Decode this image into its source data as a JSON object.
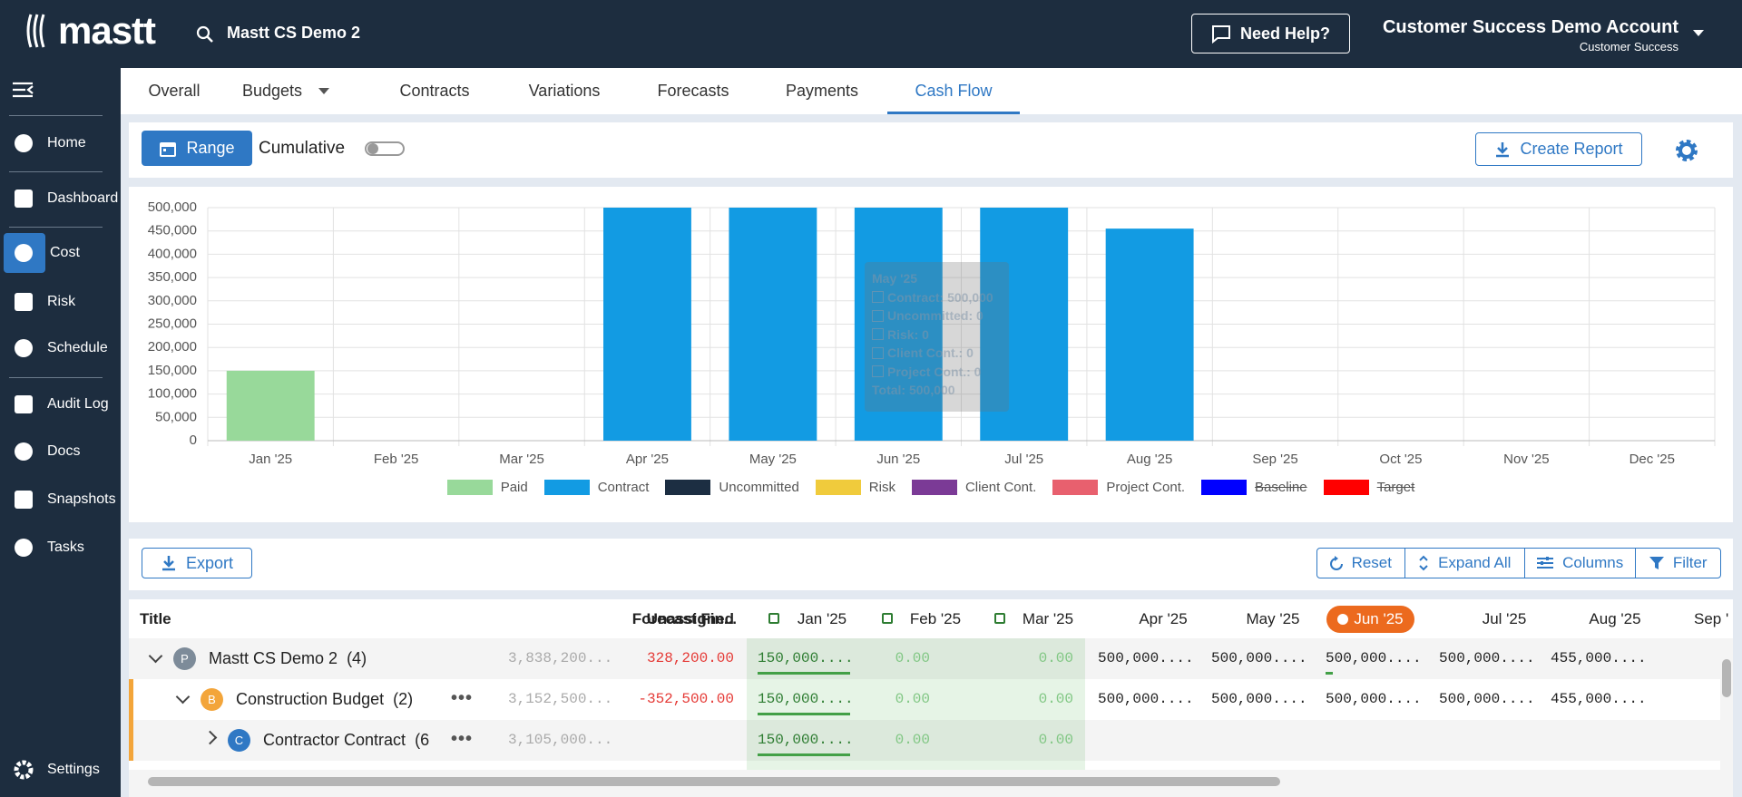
{
  "header": {
    "logo": "mastt",
    "search": "Mastt CS Demo 2",
    "help": "Need Help?",
    "account": "Customer Success Demo Account",
    "role": "Customer Success"
  },
  "sidebar": {
    "items": [
      "Home",
      "Dashboard",
      "Cost",
      "Risk",
      "Schedule",
      "Audit Log",
      "Docs",
      "Snapshots",
      "Tasks"
    ],
    "active": 2,
    "settings": "Settings"
  },
  "tabs": {
    "items": [
      "Overall",
      "Budgets",
      "Contracts",
      "Variations",
      "Forecasts",
      "Payments",
      "Cash Flow"
    ],
    "active": 6
  },
  "toolbar": {
    "range": "Range",
    "cumulative": "Cumulative",
    "create_report": "Create Report"
  },
  "chart_data": {
    "type": "bar",
    "stacked": true,
    "categories": [
      "Jan '25",
      "Feb '25",
      "Mar '25",
      "Apr '25",
      "May '25",
      "Jun '25",
      "Jul '25",
      "Aug '25",
      "Sep '25",
      "Oct '25",
      "Nov '25",
      "Dec '25"
    ],
    "series": [
      {
        "name": "Paid",
        "color": "#98d99a",
        "values": [
          150000,
          0,
          0,
          0,
          0,
          0,
          0,
          0,
          0,
          0,
          0,
          0
        ]
      },
      {
        "name": "Contract",
        "color": "#129be3",
        "values": [
          0,
          0,
          0,
          500000,
          500000,
          500000,
          500000,
          455000,
          0,
          0,
          0,
          0
        ]
      },
      {
        "name": "Uncommitted",
        "color": "#1c2e42",
        "values": [
          0,
          0,
          0,
          0,
          0,
          0,
          0,
          0,
          0,
          0,
          0,
          0
        ]
      },
      {
        "name": "Risk",
        "color": "#f0cb3c",
        "values": [
          0,
          0,
          0,
          0,
          0,
          0,
          0,
          0,
          0,
          0,
          0,
          0
        ]
      },
      {
        "name": "Client Cont.",
        "color": "#7b3a96",
        "values": [
          0,
          0,
          0,
          0,
          0,
          0,
          0,
          0,
          0,
          0,
          0,
          0
        ]
      },
      {
        "name": "Project Cont.",
        "color": "#e8606e",
        "values": [
          0,
          0,
          0,
          0,
          0,
          0,
          0,
          0,
          0,
          0,
          0,
          0
        ]
      },
      {
        "name": "Baseline",
        "color": "#0000ff",
        "hidden": true,
        "values": [
          null,
          null,
          null,
          null,
          null,
          null,
          null,
          null,
          null,
          null,
          null,
          null
        ]
      },
      {
        "name": "Target",
        "color": "#ff0000",
        "hidden": true,
        "values": [
          null,
          null,
          null,
          null,
          null,
          null,
          null,
          null,
          null,
          null,
          null,
          null
        ]
      }
    ],
    "ylim": [
      0,
      500000
    ],
    "yticks": [
      0,
      {
        "value": 50000,
        "label": "50,000"
      },
      {
        "value": 100000,
        "label": "100,000"
      },
      {
        "value": 150000,
        "label": "150,000"
      },
      {
        "value": 200000,
        "label": "200,000"
      },
      {
        "value": 250000,
        "label": "250,000"
      },
      {
        "value": 300000,
        "label": "300,000"
      },
      {
        "value": 350000,
        "label": "350,000"
      },
      {
        "value": 400000,
        "label": "400,000"
      },
      {
        "value": 450000,
        "label": "450,000"
      },
      {
        "value": 500000,
        "label": "500,000"
      }
    ],
    "grid": true,
    "legend": "bottom",
    "tooltip": {
      "title": "May '25",
      "lines": [
        "Contract: 500,000",
        "Uncommitted: 0",
        "Risk: 0",
        "Client Cont.: 0",
        "Project Cont.: 0"
      ],
      "total": "Total: 500,000"
    }
  },
  "table_toolbar": {
    "export": "Export",
    "reset": "Reset",
    "expand_all": "Expand All",
    "columns": "Columns",
    "filter": "Filter"
  },
  "table": {
    "columns": [
      "Title",
      "Forecast Fin...",
      "Unassigned",
      "Jan '25",
      "Feb '25",
      "Mar '25",
      "Apr '25",
      "May '25",
      "Jun '25",
      "Jul '25",
      "Aug '25",
      "Sep '"
    ],
    "current_column": 8,
    "rows": [
      {
        "badge": "P",
        "title": "Mastt CS Demo 2",
        "count": "(4)",
        "cells": [
          "3,838,200...",
          "328,200.00",
          "150,000....",
          "0.00",
          "0.00",
          "500,000....",
          "500,000....",
          "500,000....",
          "500,000....",
          "455,000....",
          null
        ]
      },
      {
        "badge": "B",
        "title": "Construction Budget",
        "count": "(2)",
        "cells": [
          "3,152,500...",
          "-352,500.00",
          "150,000....",
          "0.00",
          "0.00",
          "500,000....",
          "500,000....",
          "500,000....",
          "500,000....",
          "455,000....",
          null
        ]
      },
      {
        "badge": "C",
        "title": "Contractor Contract",
        "count": "(6",
        "cells": [
          "3,105,000...",
          null,
          "150,000....",
          "0.00",
          "0.00",
          null,
          null,
          null,
          null,
          null,
          null
        ]
      }
    ]
  }
}
